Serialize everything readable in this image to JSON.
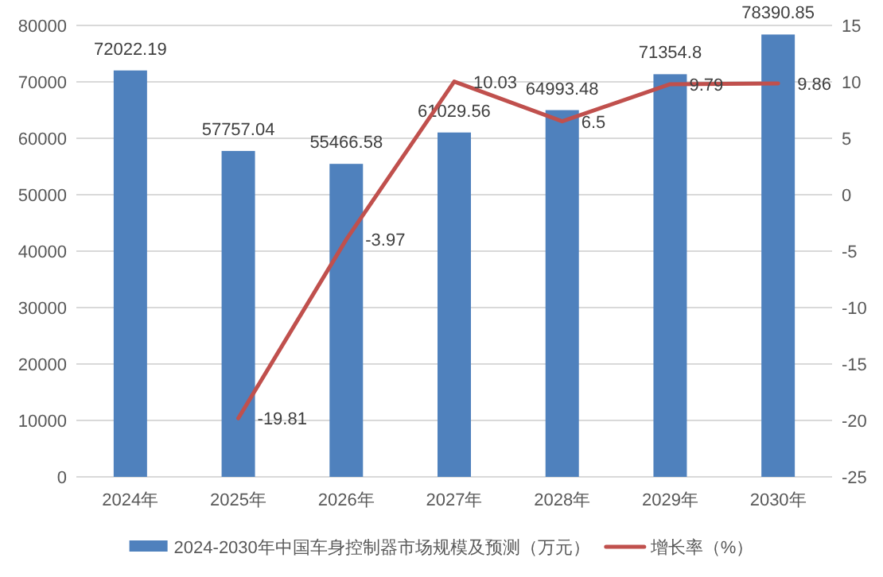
{
  "chart_data": {
    "type": "bar",
    "categories": [
      "2024年",
      "2025年",
      "2026年",
      "2027年",
      "2028年",
      "2029年",
      "2030年"
    ],
    "series": [
      {
        "name": "2024-2030年中国车身控制器市场规模及预测（万元）",
        "color": "#4f81bd",
        "values": [
          72022.19,
          57757.04,
          55466.58,
          61029.56,
          64993.48,
          71354.8,
          78390.85
        ]
      },
      {
        "name": "增长率（%）",
        "type": "line",
        "axis": "y2",
        "color": "#c0504d",
        "values": [
          null,
          -19.81,
          -3.97,
          10.03,
          6.5,
          9.79,
          9.86
        ]
      }
    ],
    "ylim": [
      0,
      80000
    ],
    "yticks": [
      0,
      10000,
      20000,
      30000,
      40000,
      50000,
      60000,
      70000,
      80000
    ],
    "y2lim": [
      -25,
      15
    ],
    "y2ticks": [
      -25,
      -20,
      -15,
      -10,
      -5,
      0,
      5,
      10,
      15
    ],
    "grid": "y",
    "legend": "bottom",
    "data_labels": true
  }
}
